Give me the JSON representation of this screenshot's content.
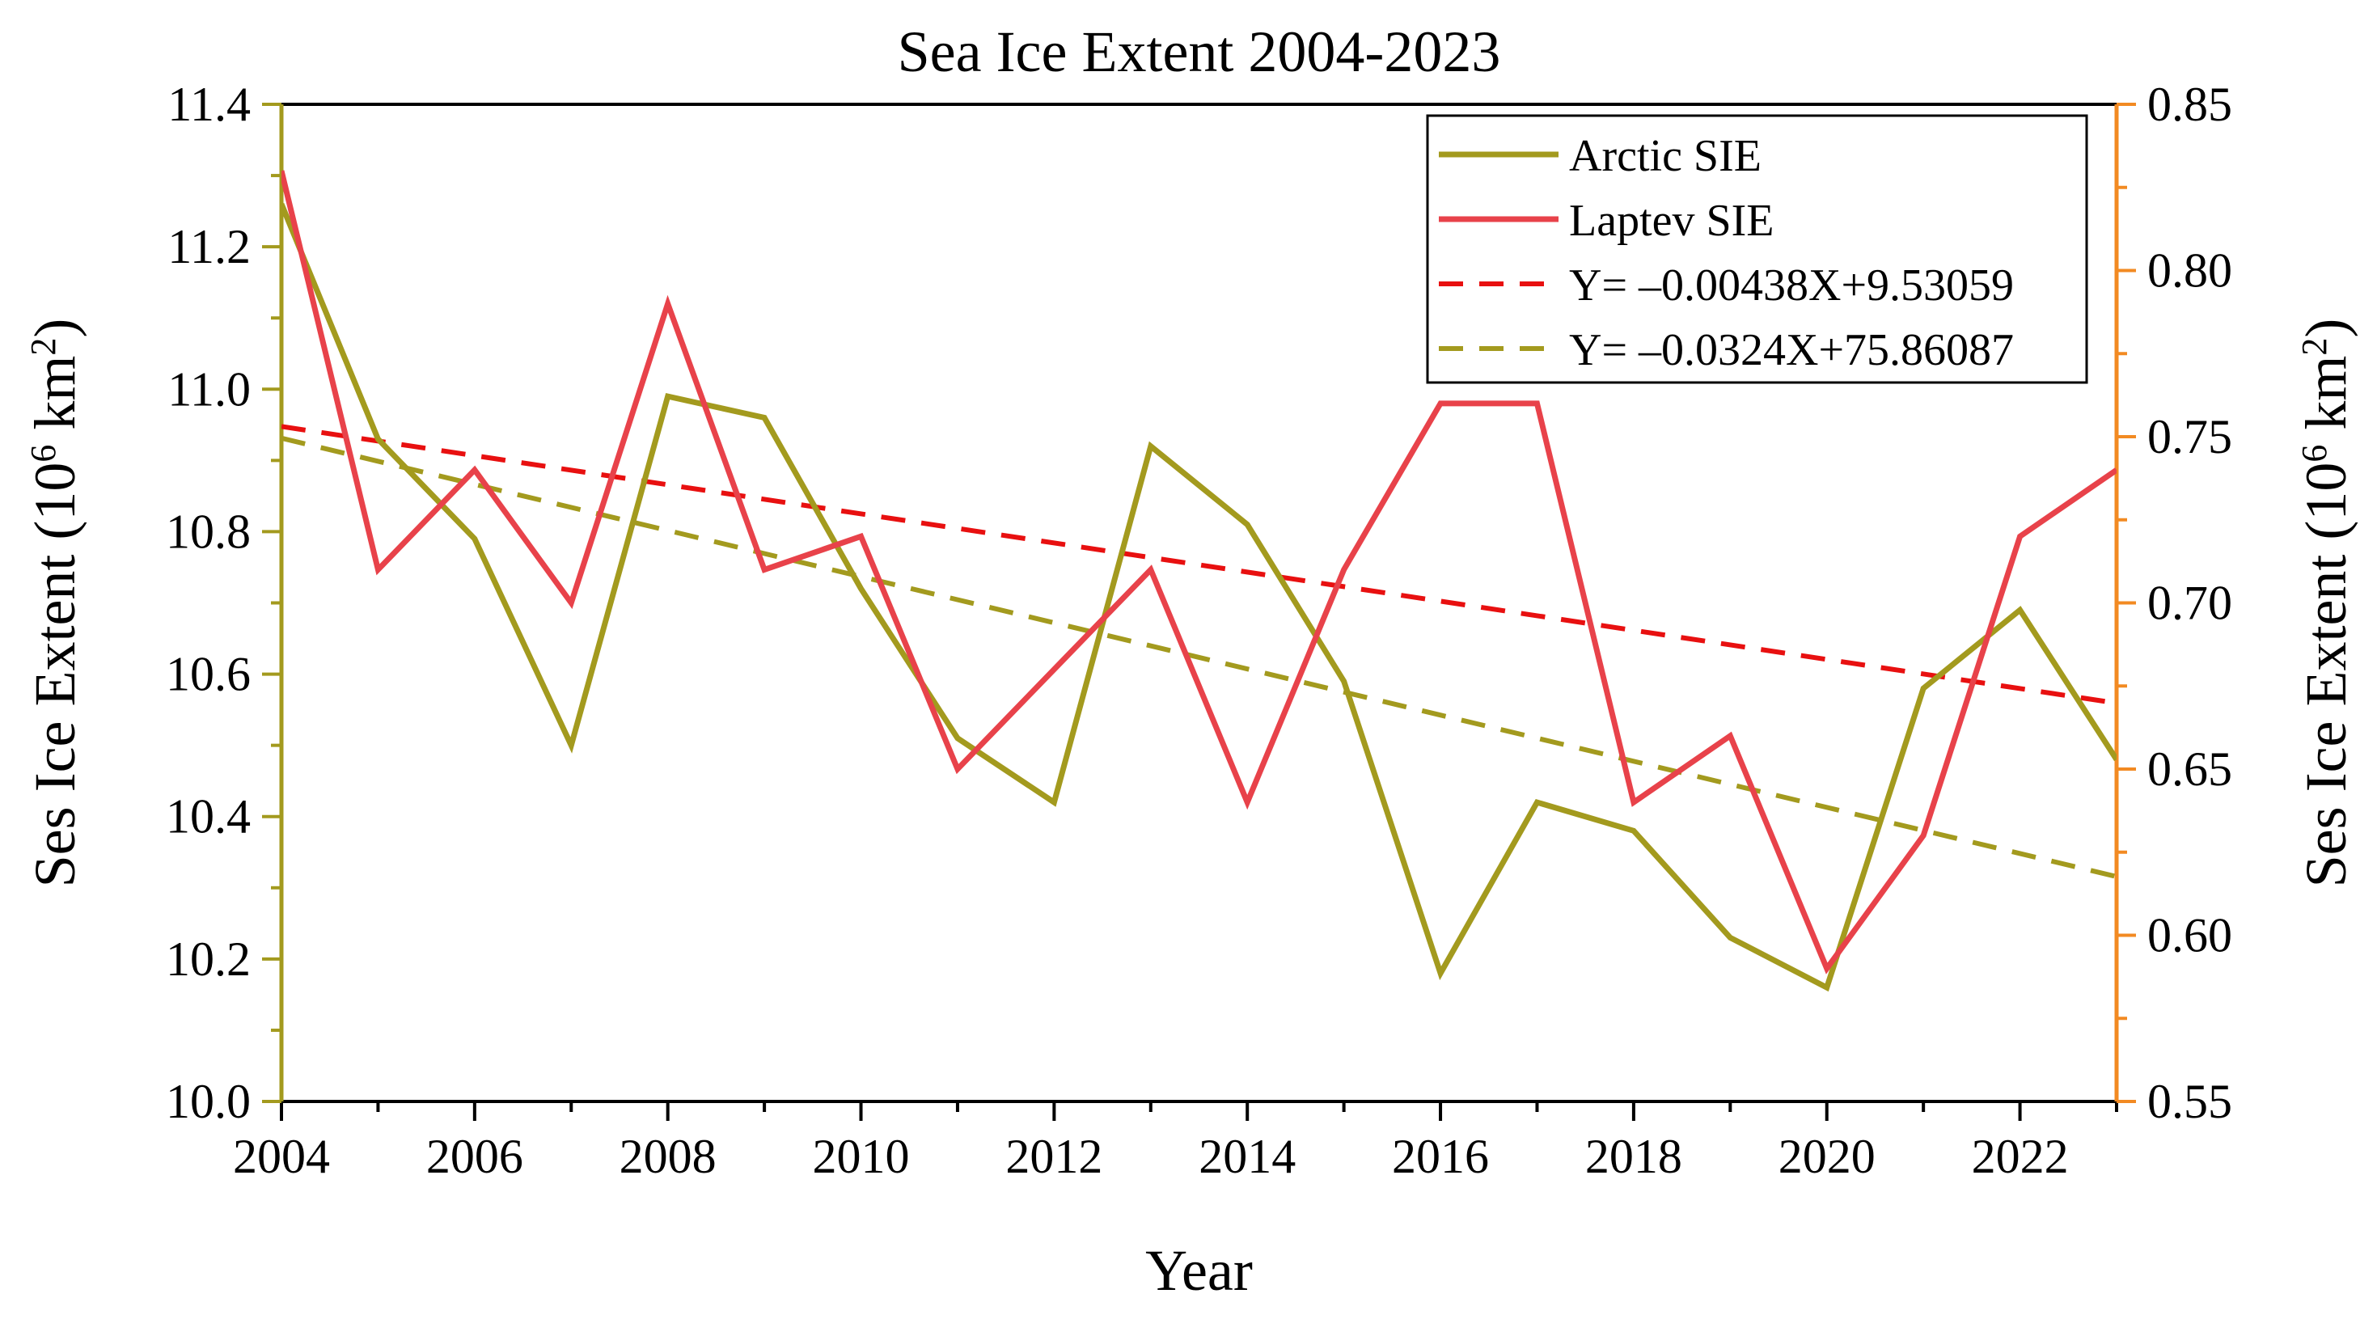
{
  "colors": {
    "arctic": "#a39a1e",
    "laptev": "#e8424a",
    "laptev_fit": "#e81010",
    "arctic_fit": "#a39a1e",
    "left_axis": "#a39a1e",
    "right_axis": "#f28a22",
    "frame": "#000000"
  },
  "chart_data": {
    "type": "line",
    "title": "Sea Ice Extent 2004-2023",
    "xlabel": "Year",
    "ylabel_left": {
      "main": "Ses Ice Extent (10",
      "sup1": "6",
      "mid": " km",
      "sup2": "2",
      "end": ")"
    },
    "ylabel_right": {
      "main": "Ses Ice Extent (10",
      "sup1": "6",
      "mid": " km",
      "sup2": "2",
      "end": ")"
    },
    "xlim": [
      2004,
      2023
    ],
    "ylim_left": [
      10.0,
      11.4
    ],
    "ylim_right": [
      0.55,
      0.85
    ],
    "x_ticks": [
      "2004",
      "2006",
      "2008",
      "2010",
      "2012",
      "2014",
      "2016",
      "2018",
      "2020",
      "2022"
    ],
    "y_left_ticks": [
      "10.0",
      "10.2",
      "10.4",
      "10.6",
      "10.8",
      "11.0",
      "11.2",
      "11.4"
    ],
    "y_right_ticks": [
      "0.55",
      "0.60",
      "0.65",
      "0.70",
      "0.75",
      "0.80",
      "0.85"
    ],
    "x": [
      2004,
      2005,
      2006,
      2007,
      2008,
      2009,
      2010,
      2011,
      2012,
      2013,
      2014,
      2015,
      2016,
      2017,
      2018,
      2019,
      2020,
      2021,
      2022,
      2023
    ],
    "series": [
      {
        "name": "Arctic SIE",
        "axis": "left",
        "style": "solid",
        "values": [
          11.26,
          10.93,
          10.79,
          10.5,
          10.99,
          10.96,
          10.72,
          10.51,
          10.42,
          10.92,
          10.81,
          10.59,
          10.18,
          10.42,
          10.38,
          10.23,
          10.16,
          10.58,
          10.69,
          10.48
        ]
      },
      {
        "name": "Laptev SIE",
        "axis": "right",
        "style": "solid",
        "values": [
          0.83,
          0.71,
          0.74,
          0.7,
          0.79,
          0.71,
          0.72,
          0.65,
          0.68,
          0.71,
          0.64,
          0.71,
          0.76,
          0.76,
          0.64,
          0.66,
          0.59,
          0.63,
          0.72,
          0.74
        ]
      }
    ],
    "fits": [
      {
        "name": "Y= –0.00438X+9.53059",
        "axis": "right",
        "style": "dashed",
        "slope": -0.00438,
        "intercept": 9.53059
      },
      {
        "name": "Y= –0.0324X+75.86087",
        "axis": "left",
        "style": "dashed",
        "slope": -0.0324,
        "intercept": 75.86087
      }
    ],
    "legend_position": "top-right",
    "grid": false
  }
}
